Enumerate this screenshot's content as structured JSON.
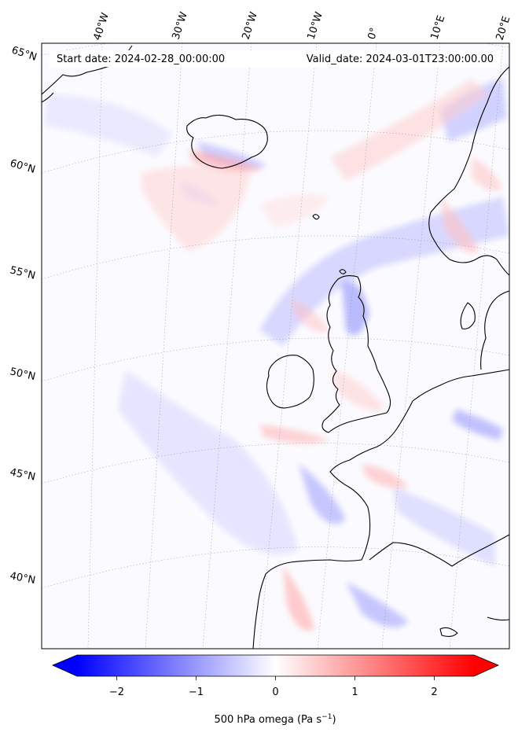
{
  "header": {
    "start_date": "Start date: 2024-02-28_00:00:00",
    "valid_date": "Valid_date: 2024-03-01T23:00:00.00"
  },
  "map": {
    "projection": "lambert-conformal",
    "lon_labels": [
      "40°W",
      "30°W",
      "20°W",
      "10°W",
      "0°",
      "10°E",
      "20°E"
    ],
    "lat_labels": [
      "65°N",
      "60°N",
      "55°N",
      "50°N",
      "45°N",
      "40°N"
    ],
    "gridlines": "dotted",
    "coastlines": true
  },
  "field": {
    "variable": "500 hPa omega",
    "colormap": "bwr",
    "vmin": -2.5,
    "vmax": 2.5,
    "negative_color": "#0000ff",
    "zero_color": "#ffffff",
    "positive_color": "#ff0000"
  },
  "colorbar": {
    "ticks": [
      "−2",
      "−1",
      "0",
      "1",
      "2"
    ],
    "tick_values": [
      -2,
      -1,
      0,
      1,
      2
    ],
    "label_main": "500 hPa omega (Pa s",
    "label_exp": "−1",
    "label_close": ")",
    "extend": "both"
  }
}
